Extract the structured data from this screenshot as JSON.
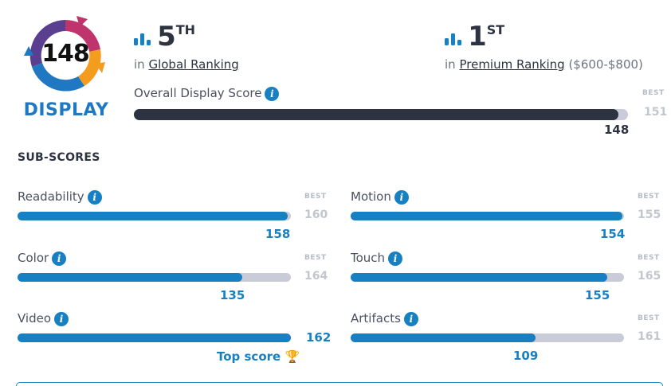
{
  "badge": {
    "score": "148",
    "label": "DISPLAY"
  },
  "global_rank": {
    "number": "5",
    "suffix": "TH",
    "prefix": "in",
    "link": "Global Ranking"
  },
  "premium_rank": {
    "number": "1",
    "suffix": "ST",
    "prefix": "in",
    "link": "Premium Ranking",
    "range": "($600-$800)"
  },
  "overall": {
    "title": "Overall Display Score",
    "value": 148,
    "value_text": "148",
    "best_label": "BEST",
    "best": 151,
    "best_text": "151"
  },
  "section_title": "SUB-SCORES",
  "info_glyph": "i",
  "subscores": [
    {
      "name": "Readability",
      "value": 158,
      "value_text": "158",
      "best": 160,
      "best_text": "160",
      "best_label": "BEST"
    },
    {
      "name": "Motion",
      "value": 154,
      "value_text": "154",
      "best": 155,
      "best_text": "155",
      "best_label": "BEST"
    },
    {
      "name": "Color",
      "value": 135,
      "value_text": "135",
      "best": 164,
      "best_text": "164",
      "best_label": "BEST"
    },
    {
      "name": "Touch",
      "value": 155,
      "value_text": "155",
      "best": 165,
      "best_text": "165",
      "best_label": "BEST"
    },
    {
      "name": "Video",
      "value": 162,
      "value_text": "162",
      "best": 162,
      "best_text": "",
      "best_label": "",
      "note": "Top score"
    },
    {
      "name": "Artifacts",
      "value": 109,
      "value_text": "109",
      "best": 161,
      "best_text": "161",
      "best_label": "BEST"
    }
  ],
  "colors": {
    "accent": "#1680c3",
    "dark": "#2d3340",
    "track": "#c9ccd8"
  }
}
